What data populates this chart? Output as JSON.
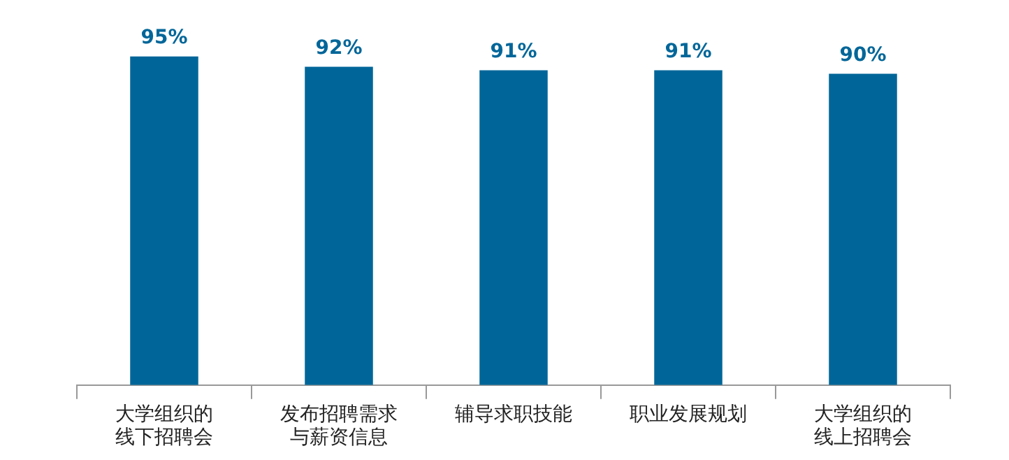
{
  "chart_data": {
    "type": "bar",
    "categories": [
      "大学组织的线下招聘会",
      "发布招聘需求与薪资信息",
      "辅导求职技能",
      "职业发展规划",
      "大学组织的线上招聘会"
    ],
    "values": [
      95,
      92,
      91,
      91,
      90
    ],
    "value_labels": [
      "95%",
      "92%",
      "91%",
      "91%",
      "90%"
    ],
    "color": "#006699",
    "grid": false,
    "legend": false
  }
}
